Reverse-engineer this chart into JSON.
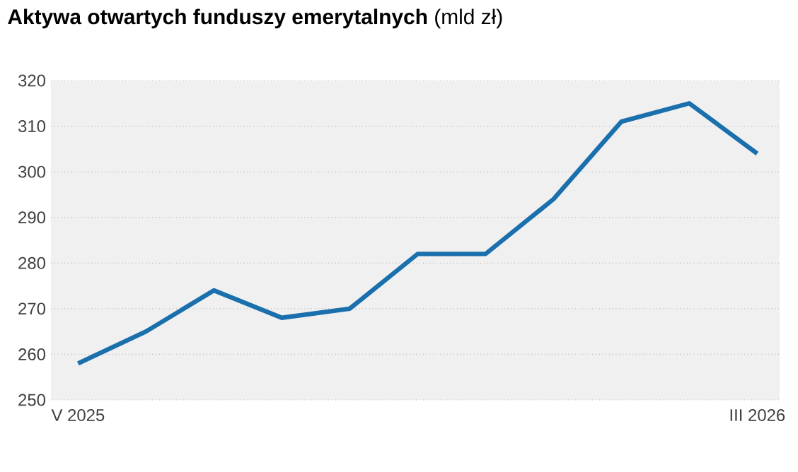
{
  "chart_data": {
    "type": "line",
    "title": "**Aktywa otwartych funduszy emerytalnych** (mld zł)",
    "categories": [
      "V 2025",
      null,
      null,
      null,
      null,
      null,
      null,
      null,
      null,
      null,
      "III 2026"
    ],
    "values": [
      258,
      265,
      274,
      268,
      270,
      282,
      282,
      294,
      311,
      315,
      304
    ],
    "color": "#1a6fad",
    "ylim": [
      250,
      320
    ],
    "yticks": [
      250,
      260,
      270,
      280,
      290,
      300,
      310,
      320
    ],
    "grid": "y"
  }
}
